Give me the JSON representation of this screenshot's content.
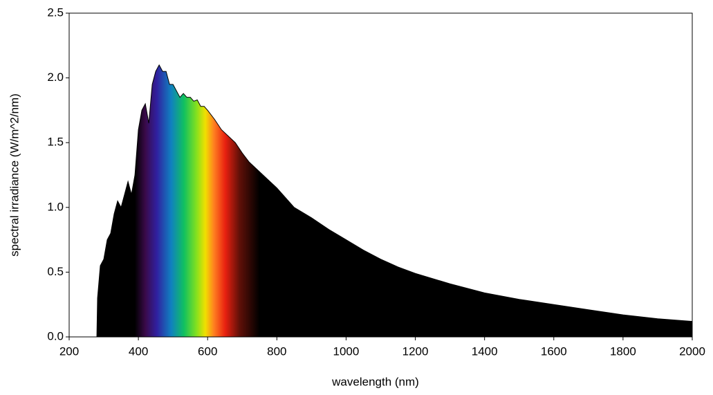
{
  "chart_data": {
    "type": "area",
    "xlabel": "wavelength (nm)",
    "ylabel": "spectral irradiance (W/m^2/nm)",
    "color": "#000000",
    "x": [
      280,
      282,
      290,
      300,
      310,
      320,
      330,
      340,
      350,
      360,
      370,
      380,
      390,
      400,
      410,
      420,
      430,
      440,
      450,
      460,
      470,
      480,
      490,
      500,
      510,
      520,
      530,
      540,
      550,
      560,
      570,
      580,
      590,
      600,
      620,
      640,
      660,
      680,
      700,
      720,
      740,
      760,
      800,
      850,
      900,
      950,
      1000,
      1050,
      1100,
      1150,
      1200,
      1300,
      1400,
      1500,
      1600,
      1700,
      1800,
      1900,
      2000
    ],
    "values": [
      0.0,
      0.3,
      0.55,
      0.6,
      0.75,
      0.8,
      0.95,
      1.05,
      1.0,
      1.1,
      1.2,
      1.1,
      1.25,
      1.6,
      1.75,
      1.8,
      1.65,
      1.95,
      2.05,
      2.1,
      2.05,
      2.05,
      1.95,
      1.95,
      1.9,
      1.85,
      1.88,
      1.85,
      1.85,
      1.82,
      1.83,
      1.78,
      1.78,
      1.75,
      1.68,
      1.6,
      1.55,
      1.5,
      1.42,
      1.35,
      1.3,
      1.25,
      1.15,
      1.0,
      0.92,
      0.83,
      0.75,
      0.67,
      0.6,
      0.54,
      0.49,
      0.41,
      0.34,
      0.29,
      0.25,
      0.21,
      0.17,
      0.14,
      0.12
    ],
    "xlim": [
      200,
      2000
    ],
    "xticks": [
      200,
      400,
      600,
      800,
      1000,
      1200,
      1400,
      1600,
      1800,
      2000
    ],
    "ylim": [
      0,
      2.5
    ],
    "yticks": [
      {
        "value": 0,
        "label": "0.0"
      },
      0.5,
      {
        "value": 1,
        "label": "1.0"
      },
      1.5,
      {
        "value": 2,
        "label": "2.0"
      },
      2.5
    ]
  }
}
